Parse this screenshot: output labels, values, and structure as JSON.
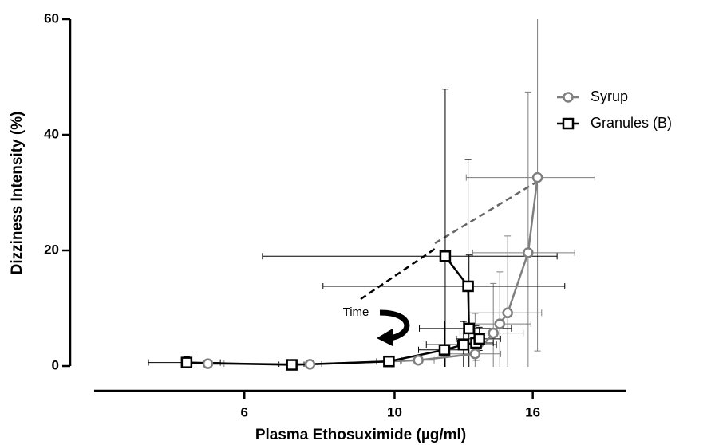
{
  "chart_data": {
    "type": "scatter",
    "x_label": "Plasma Ethosuximide (µg/ml)",
    "y_label": "Dizziness Intensity (%)",
    "x_scale": "log",
    "xlim": [
      3.6,
      22
    ],
    "xticks": [
      6,
      10,
      16
    ],
    "ylim": [
      0,
      60
    ],
    "yticks": [
      0,
      20,
      40,
      60
    ],
    "legend": "right",
    "annotations": [
      "Time"
    ],
    "series": [
      {
        "name": "Syrup",
        "color": "#7f7f7f",
        "marker": "circle",
        "x": [
          5.3,
          7.5,
          10.84,
          13.15,
          13.99,
          14.3,
          14.69,
          15.75,
          16.26
        ],
        "values": [
          0.4,
          0.3,
          1.0,
          2.1,
          5.7,
          7.3,
          9.2,
          19.6,
          32.6
        ],
        "x_errors": [
          0.3,
          0.3,
          0.6,
          1.2,
          1.5,
          1.6,
          1.8,
          2.7,
          3.5
        ],
        "y_errors": [
          0.3,
          0.3,
          0.5,
          7.0,
          8.6,
          9.0,
          13.3,
          27.8,
          30
        ]
      },
      {
        "name": "Granules (B)",
        "color": "#000000",
        "marker": "square",
        "x": [
          4.93,
          7.05,
          9.81,
          11.85,
          12.64,
          13.19,
          13.34,
          12.88,
          12.84,
          11.88
        ],
        "values": [
          0.6,
          0.2,
          0.8,
          2.8,
          3.7,
          4.0,
          4.7,
          6.5,
          13.8,
          19.0
        ],
        "x_errors": [
          0.6,
          0.3,
          0.4,
          1.0,
          1.5,
          0.8,
          1.0,
          2.0,
          5.0,
          5.5
        ],
        "y_errors": [
          1.0,
          0.3,
          0.5,
          5.0,
          4.0,
          3.0,
          2.0,
          12.7,
          21.9,
          28.9
        ]
      }
    ]
  }
}
